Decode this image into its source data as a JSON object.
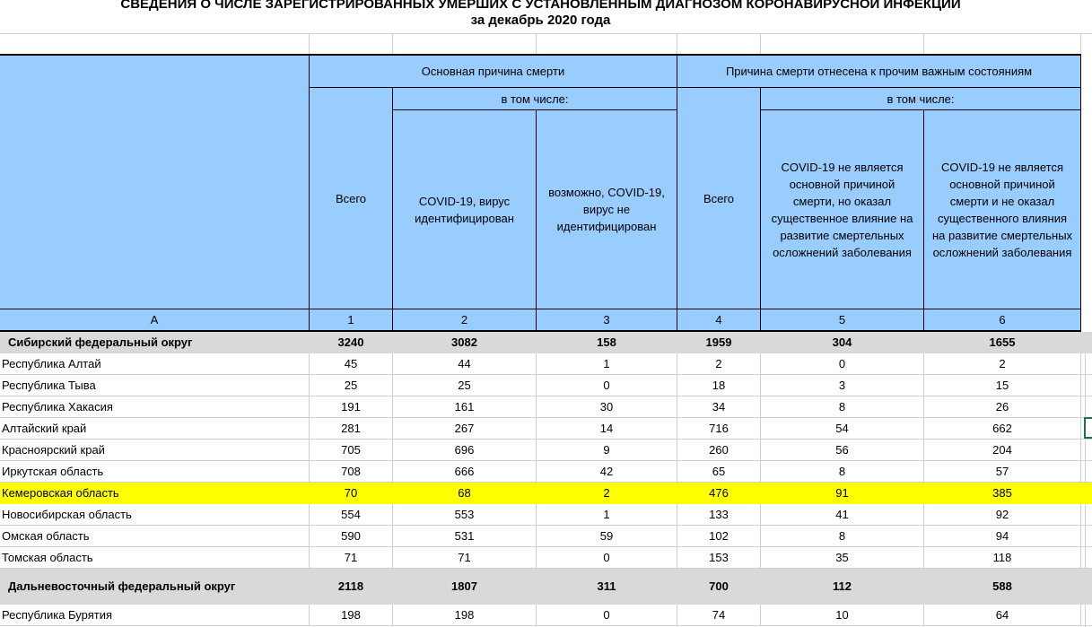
{
  "title": {
    "line1": "СВЕДЕНИЯ О ЧИСЛЕ ЗАРЕГИСТРИРОВАННЫХ УМЕРШИХ С УСТАНОВЛЕННЫМ ДИАГНОЗОМ КОРОНАВИРУСНОЙ ИНФЕКЦИИ",
    "line2": "за декабрь 2020 года"
  },
  "table": {
    "column_letter": "А",
    "column_numbers": [
      "1",
      "2",
      "3",
      "4",
      "5",
      "6"
    ],
    "groups": {
      "main_cause": "Основная причина смерти",
      "other_conditions": "Причина смерти отнесена к прочим важным состояниям"
    },
    "including_label": "в том числе:",
    "total_label": "Всего",
    "subcolumns": {
      "col2": "COVID-19, вирус идентифицирован",
      "col3": "возможно, COVID-19, вирус не идентифицирован",
      "col5": "COVID-19 не является основной причиной смерти, но оказал существенное влияние на развитие смертельных осложнений заболевания",
      "col6": "COVID-19 не является основной причиной смерти и не оказал существенного влияния на развитие смертельных осложнений заболевания"
    }
  },
  "rows": [
    {
      "name": "Сибирский федеральный округ",
      "type": "district",
      "values": [
        "3240",
        "3082",
        "158",
        "1959",
        "304",
        "1655"
      ]
    },
    {
      "name": "Республика Алтай",
      "type": "region",
      "values": [
        "45",
        "44",
        "1",
        "2",
        "0",
        "2"
      ]
    },
    {
      "name": "Республика Тыва",
      "type": "region",
      "values": [
        "25",
        "25",
        "0",
        "18",
        "3",
        "15"
      ]
    },
    {
      "name": "Республика Хакасия",
      "type": "region",
      "values": [
        "191",
        "161",
        "30",
        "34",
        "8",
        "26"
      ]
    },
    {
      "name": "Алтайский край",
      "type": "region",
      "values": [
        "281",
        "267",
        "14",
        "716",
        "54",
        "662"
      ]
    },
    {
      "name": "Красноярский край",
      "type": "region",
      "values": [
        "705",
        "696",
        "9",
        "260",
        "56",
        "204"
      ]
    },
    {
      "name": "Иркутская область",
      "type": "region",
      "values": [
        "708",
        "666",
        "42",
        "65",
        "8",
        "57"
      ]
    },
    {
      "name": "Кемеровская область",
      "type": "region",
      "highlight": true,
      "values": [
        "70",
        "68",
        "2",
        "476",
        "91",
        "385"
      ]
    },
    {
      "name": "Новосибирская область",
      "type": "region",
      "values": [
        "554",
        "553",
        "1",
        "133",
        "41",
        "92"
      ]
    },
    {
      "name": "Омская область",
      "type": "region",
      "values": [
        "590",
        "531",
        "59",
        "102",
        "8",
        "94"
      ]
    },
    {
      "name": "Томская область",
      "type": "region",
      "values": [
        "71",
        "71",
        "0",
        "153",
        "35",
        "118"
      ]
    },
    {
      "name": "Дальневосточный федеральный округ",
      "type": "district",
      "tall": true,
      "values": [
        "2118",
        "1807",
        "311",
        "700",
        "112",
        "588"
      ]
    },
    {
      "name": "Республика Бурятия",
      "type": "region",
      "values": [
        "198",
        "198",
        "0",
        "74",
        "10",
        "64"
      ]
    }
  ],
  "colors": {
    "header_blue": "#99CCFF",
    "district_gray": "#D9D9D9",
    "highlight_yellow": "#FFFF00",
    "selection_green": "#217346",
    "gridline": "#D0D0D0"
  }
}
